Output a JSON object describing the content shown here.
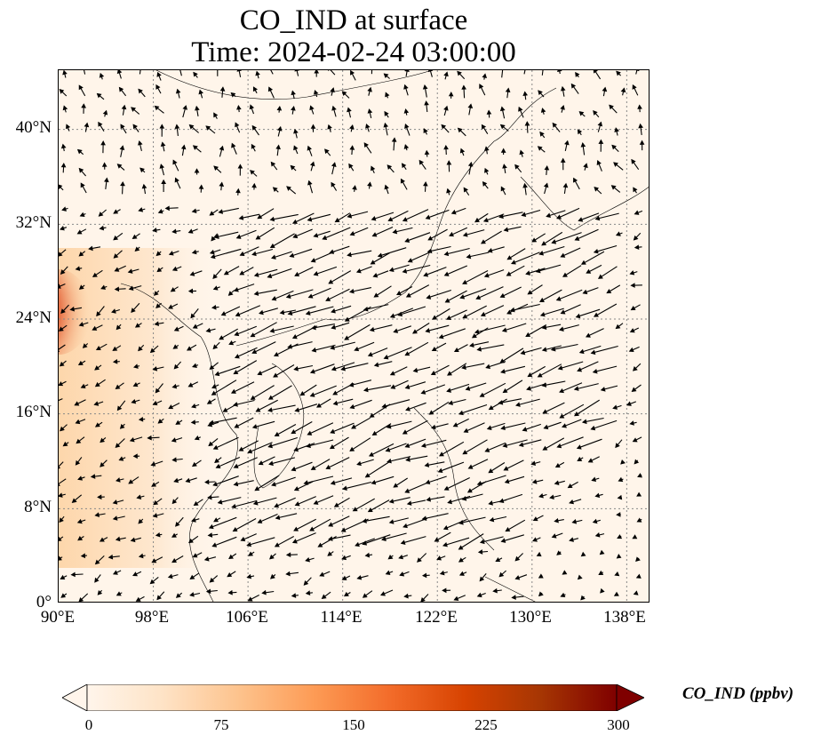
{
  "title": {
    "line1": "CO_IND at surface",
    "line2": "Time: 2024-02-24 03:00:00"
  },
  "map": {
    "lon_range": [
      90,
      140
    ],
    "lat_range": [
      0,
      45
    ],
    "y_ticks": [
      "0°",
      "8°N",
      "16°N",
      "24°N",
      "32°N",
      "40°N"
    ],
    "x_ticks": [
      "90°E",
      "98°E",
      "106°E",
      "114°E",
      "122°E",
      "130°E",
      "138°E"
    ],
    "gridlines": "dotted",
    "background_color": "#fff5ea",
    "hotspot_color": "#b00000",
    "vector_color": "#000000"
  },
  "colorbar": {
    "label": "CO_IND (ppbv)",
    "ticks": [
      "0",
      "75",
      "150",
      "225",
      "300"
    ],
    "min": 0,
    "max": 300,
    "colormap": [
      "#fff5eb",
      "#fee3c6",
      "#fdc38d",
      "#fd9b55",
      "#f36c2a",
      "#d74301",
      "#a63603",
      "#7f0000"
    ],
    "extend": "both"
  }
}
